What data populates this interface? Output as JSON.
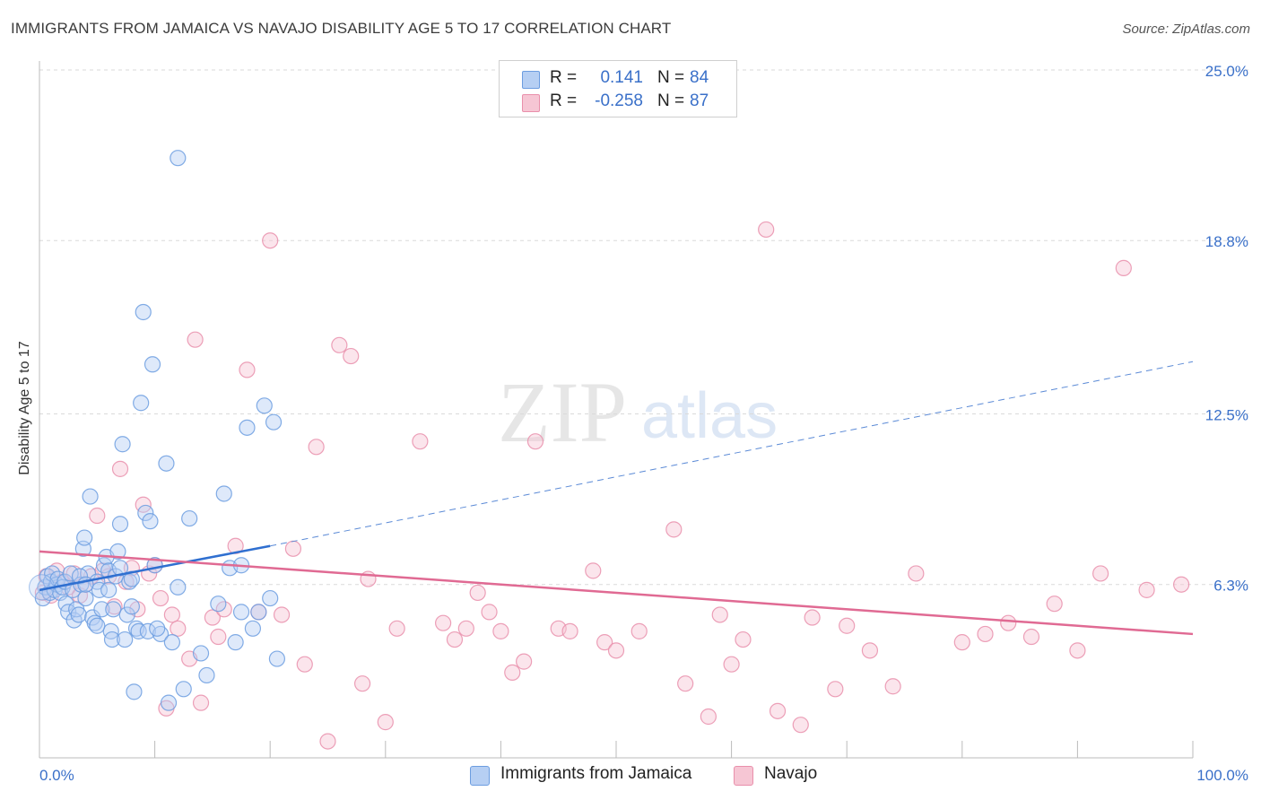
{
  "title": "IMMIGRANTS FROM JAMAICA VS NAVAJO DISABILITY AGE 5 TO 17 CORRELATION CHART",
  "source": "Source: ZipAtlas.com",
  "watermark": {
    "zip": "ZIP",
    "atlas": "atlas"
  },
  "legend_top": {
    "rows": [
      {
        "r_label": "R =",
        "r_value": "0.141",
        "n_label": "N =",
        "n_value": "84"
      },
      {
        "r_label": "R =",
        "r_value": "-0.258",
        "n_label": "N =",
        "n_value": "87"
      }
    ]
  },
  "chart_data": {
    "type": "scatter",
    "title": "IMMIGRANTS FROM JAMAICA VS NAVAJO DISABILITY AGE 5 TO 17 CORRELATION CHART",
    "xlabel": "",
    "ylabel": "Disability Age 5 to 17",
    "xlim": [
      0,
      100
    ],
    "ylim": [
      0,
      25
    ],
    "x_tick_labels": [
      "0.0%",
      "100.0%"
    ],
    "y_ticks": [
      6.3,
      12.5,
      18.8,
      25.0
    ],
    "y_tick_labels": [
      "6.3%",
      "12.5%",
      "18.8%",
      "25.0%"
    ],
    "grid": true,
    "legend_position": "bottom",
    "series": [
      {
        "name": "Immigrants from Jamaica",
        "color": "#6c9de0",
        "fill": "#b6cff3",
        "R": 0.141,
        "N": 84,
        "trend": {
          "x0": 0,
          "y0": 6.1,
          "x1": 20,
          "y1": 7.7,
          "dashed_to_x": 100,
          "dashed_to_y": 14.4
        },
        "points": [
          [
            0.3,
            5.8
          ],
          [
            0.5,
            6.2
          ],
          [
            0.7,
            6.6
          ],
          [
            0.9,
            6.0
          ],
          [
            1.0,
            6.4
          ],
          [
            1.1,
            6.7
          ],
          [
            1.3,
            6.1
          ],
          [
            1.5,
            6.3
          ],
          [
            1.6,
            6.5
          ],
          [
            1.8,
            6.0
          ],
          [
            2.0,
            6.2
          ],
          [
            2.2,
            6.4
          ],
          [
            2.3,
            5.6
          ],
          [
            2.5,
            5.3
          ],
          [
            2.7,
            6.7
          ],
          [
            2.9,
            6.1
          ],
          [
            3.0,
            5.0
          ],
          [
            3.2,
            5.4
          ],
          [
            3.4,
            5.2
          ],
          [
            3.6,
            6.3
          ],
          [
            3.8,
            7.6
          ],
          [
            3.9,
            8.0
          ],
          [
            4.0,
            5.8
          ],
          [
            4.2,
            6.7
          ],
          [
            4.4,
            9.5
          ],
          [
            4.6,
            5.1
          ],
          [
            4.8,
            4.9
          ],
          [
            5.0,
            6.4
          ],
          [
            5.2,
            6.1
          ],
          [
            5.4,
            5.4
          ],
          [
            5.6,
            7.0
          ],
          [
            5.8,
            7.3
          ],
          [
            6.0,
            6.8
          ],
          [
            6.2,
            4.6
          ],
          [
            6.3,
            4.3
          ],
          [
            6.4,
            5.4
          ],
          [
            6.6,
            6.6
          ],
          [
            6.8,
            7.5
          ],
          [
            7.0,
            6.9
          ],
          [
            7.2,
            11.4
          ],
          [
            7.4,
            4.3
          ],
          [
            7.6,
            5.2
          ],
          [
            7.8,
            6.4
          ],
          [
            8.0,
            6.5
          ],
          [
            8.2,
            2.4
          ],
          [
            8.4,
            4.7
          ],
          [
            8.6,
            4.6
          ],
          [
            8.8,
            12.9
          ],
          [
            9.0,
            16.2
          ],
          [
            9.2,
            8.9
          ],
          [
            9.4,
            4.6
          ],
          [
            9.6,
            8.6
          ],
          [
            9.8,
            14.3
          ],
          [
            10.0,
            7.0
          ],
          [
            10.5,
            4.5
          ],
          [
            11.0,
            10.7
          ],
          [
            11.2,
            2.0
          ],
          [
            11.5,
            4.2
          ],
          [
            12.0,
            6.2
          ],
          [
            12.5,
            2.5
          ],
          [
            13.0,
            8.7
          ],
          [
            14.0,
            3.8
          ],
          [
            14.5,
            3.0
          ],
          [
            15.5,
            5.6
          ],
          [
            16.0,
            9.6
          ],
          [
            16.5,
            6.9
          ],
          [
            17.0,
            4.2
          ],
          [
            17.5,
            7.0
          ],
          [
            18.0,
            12.0
          ],
          [
            18.5,
            4.7
          ],
          [
            19.0,
            5.3
          ],
          [
            19.5,
            12.8
          ],
          [
            20.0,
            5.8
          ],
          [
            20.3,
            12.2
          ],
          [
            20.6,
            3.6
          ],
          [
            8.0,
            5.5
          ],
          [
            7.0,
            8.5
          ],
          [
            10.2,
            4.7
          ],
          [
            5.0,
            4.8
          ],
          [
            3.5,
            6.6
          ],
          [
            17.5,
            5.3
          ],
          [
            12.0,
            21.8
          ],
          [
            4.0,
            6.3
          ],
          [
            6.0,
            6.1
          ]
        ]
      },
      {
        "name": "Navajo",
        "color": "#e98fab",
        "fill": "#f6c6d4",
        "R": -0.258,
        "N": 87,
        "trend": {
          "x0": 0,
          "y0": 7.5,
          "x1": 100,
          "y1": 4.5
        },
        "points": [
          [
            0.3,
            6.0
          ],
          [
            0.6,
            6.6
          ],
          [
            1.0,
            5.9
          ],
          [
            1.5,
            6.8
          ],
          [
            2.0,
            6.4
          ],
          [
            2.5,
            6.2
          ],
          [
            3.0,
            6.7
          ],
          [
            3.5,
            5.9
          ],
          [
            4.0,
            6.3
          ],
          [
            4.5,
            6.6
          ],
          [
            5.0,
            8.8
          ],
          [
            5.5,
            6.8
          ],
          [
            6.0,
            6.6
          ],
          [
            6.5,
            5.5
          ],
          [
            7.0,
            10.5
          ],
          [
            7.5,
            6.4
          ],
          [
            8.0,
            6.9
          ],
          [
            8.5,
            5.4
          ],
          [
            9.0,
            9.2
          ],
          [
            9.5,
            6.7
          ],
          [
            10.0,
            7.0
          ],
          [
            10.5,
            5.8
          ],
          [
            11.0,
            1.8
          ],
          [
            11.5,
            5.2
          ],
          [
            12.0,
            4.7
          ],
          [
            13.0,
            3.6
          ],
          [
            13.5,
            15.2
          ],
          [
            14.0,
            2.0
          ],
          [
            15.0,
            5.1
          ],
          [
            15.5,
            4.4
          ],
          [
            16.0,
            5.4
          ],
          [
            17.0,
            7.7
          ],
          [
            18.0,
            14.1
          ],
          [
            19.0,
            5.3
          ],
          [
            20.0,
            18.8
          ],
          [
            21.0,
            5.2
          ],
          [
            22.0,
            7.6
          ],
          [
            23.0,
            3.4
          ],
          [
            24.0,
            11.3
          ],
          [
            25.0,
            0.6
          ],
          [
            26.0,
            15.0
          ],
          [
            27.0,
            14.6
          ],
          [
            28.0,
            2.7
          ],
          [
            28.5,
            6.5
          ],
          [
            30.0,
            1.3
          ],
          [
            31.0,
            4.7
          ],
          [
            33.0,
            11.5
          ],
          [
            35.0,
            4.9
          ],
          [
            36.0,
            4.3
          ],
          [
            37.0,
            4.7
          ],
          [
            38.0,
            6.0
          ],
          [
            39.0,
            5.3
          ],
          [
            40.0,
            4.6
          ],
          [
            41.0,
            3.1
          ],
          [
            42.0,
            3.5
          ],
          [
            43.0,
            11.5
          ],
          [
            45.0,
            4.7
          ],
          [
            46.0,
            4.6
          ],
          [
            48.0,
            6.8
          ],
          [
            49.0,
            4.2
          ],
          [
            50.0,
            3.9
          ],
          [
            52.0,
            4.6
          ],
          [
            55.0,
            8.3
          ],
          [
            56.0,
            2.7
          ],
          [
            58.0,
            1.5
          ],
          [
            59.0,
            5.2
          ],
          [
            60.0,
            3.4
          ],
          [
            61.0,
            4.3
          ],
          [
            63.0,
            19.2
          ],
          [
            64.0,
            1.7
          ],
          [
            66.0,
            1.2
          ],
          [
            67.0,
            5.1
          ],
          [
            69.0,
            2.5
          ],
          [
            70.0,
            4.8
          ],
          [
            72.0,
            3.9
          ],
          [
            74.0,
            2.6
          ],
          [
            76.0,
            6.7
          ],
          [
            80.0,
            4.2
          ],
          [
            82.0,
            4.5
          ],
          [
            84.0,
            4.9
          ],
          [
            86.0,
            4.4
          ],
          [
            88.0,
            5.6
          ],
          [
            90.0,
            3.9
          ],
          [
            92.0,
            6.7
          ],
          [
            94.0,
            17.8
          ],
          [
            96.0,
            6.1
          ],
          [
            99.0,
            6.3
          ]
        ]
      }
    ]
  }
}
